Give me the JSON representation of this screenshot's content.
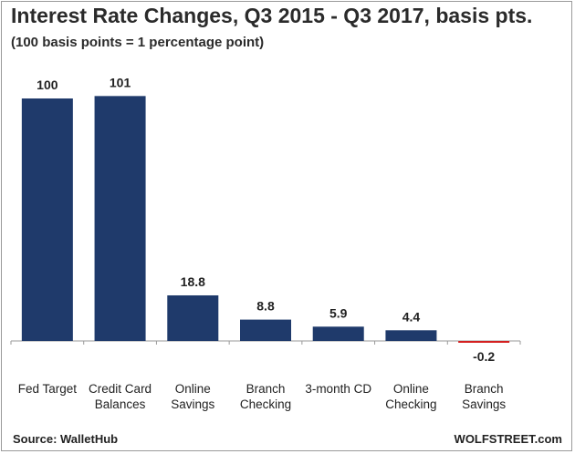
{
  "chart_data": {
    "type": "bar",
    "title": "Interest Rate Changes, Q3 2015 - Q3 2017, basis pts.",
    "subtitle": "(100 basis points = 1 percentage point)",
    "categories": [
      [
        "Fed Target"
      ],
      [
        "Credit Card",
        "Balances"
      ],
      [
        "Online",
        "Savings"
      ],
      [
        "Branch",
        "Checking"
      ],
      [
        "3-month CD"
      ],
      [
        "Online",
        "Checking"
      ],
      [
        "Branch",
        "Savings"
      ]
    ],
    "values": [
      100,
      101,
      18.8,
      8.8,
      5.9,
      4.4,
      -0.2
    ],
    "value_labels": [
      "100",
      "101",
      "18.8",
      "8.8",
      "5.9",
      "4.4",
      "-0.2"
    ],
    "colors": {
      "positive": "#1f3a6b",
      "negative": "#d42020"
    },
    "grid": false,
    "legend": "none"
  },
  "footer": {
    "source": "Source: WalletHub",
    "brand": "WOLFSTREET.com"
  }
}
